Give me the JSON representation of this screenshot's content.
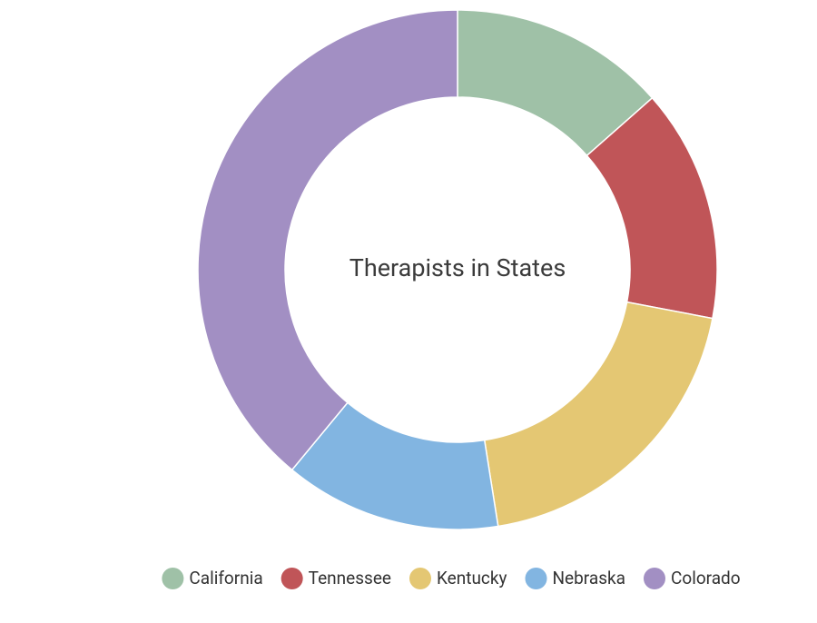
{
  "chart_data": {
    "type": "donut",
    "title": "Therapists in States",
    "categories": [
      "California",
      "Tennessee",
      "Kentucky",
      "Nebraska",
      "Colorado"
    ],
    "values": [
      13.5,
      14.5,
      19.5,
      13.5,
      39
    ],
    "colors": [
      "#9fc1a7",
      "#c05558",
      "#e4c773",
      "#82b5e1",
      "#a28fc3"
    ],
    "legend": "bottom"
  }
}
